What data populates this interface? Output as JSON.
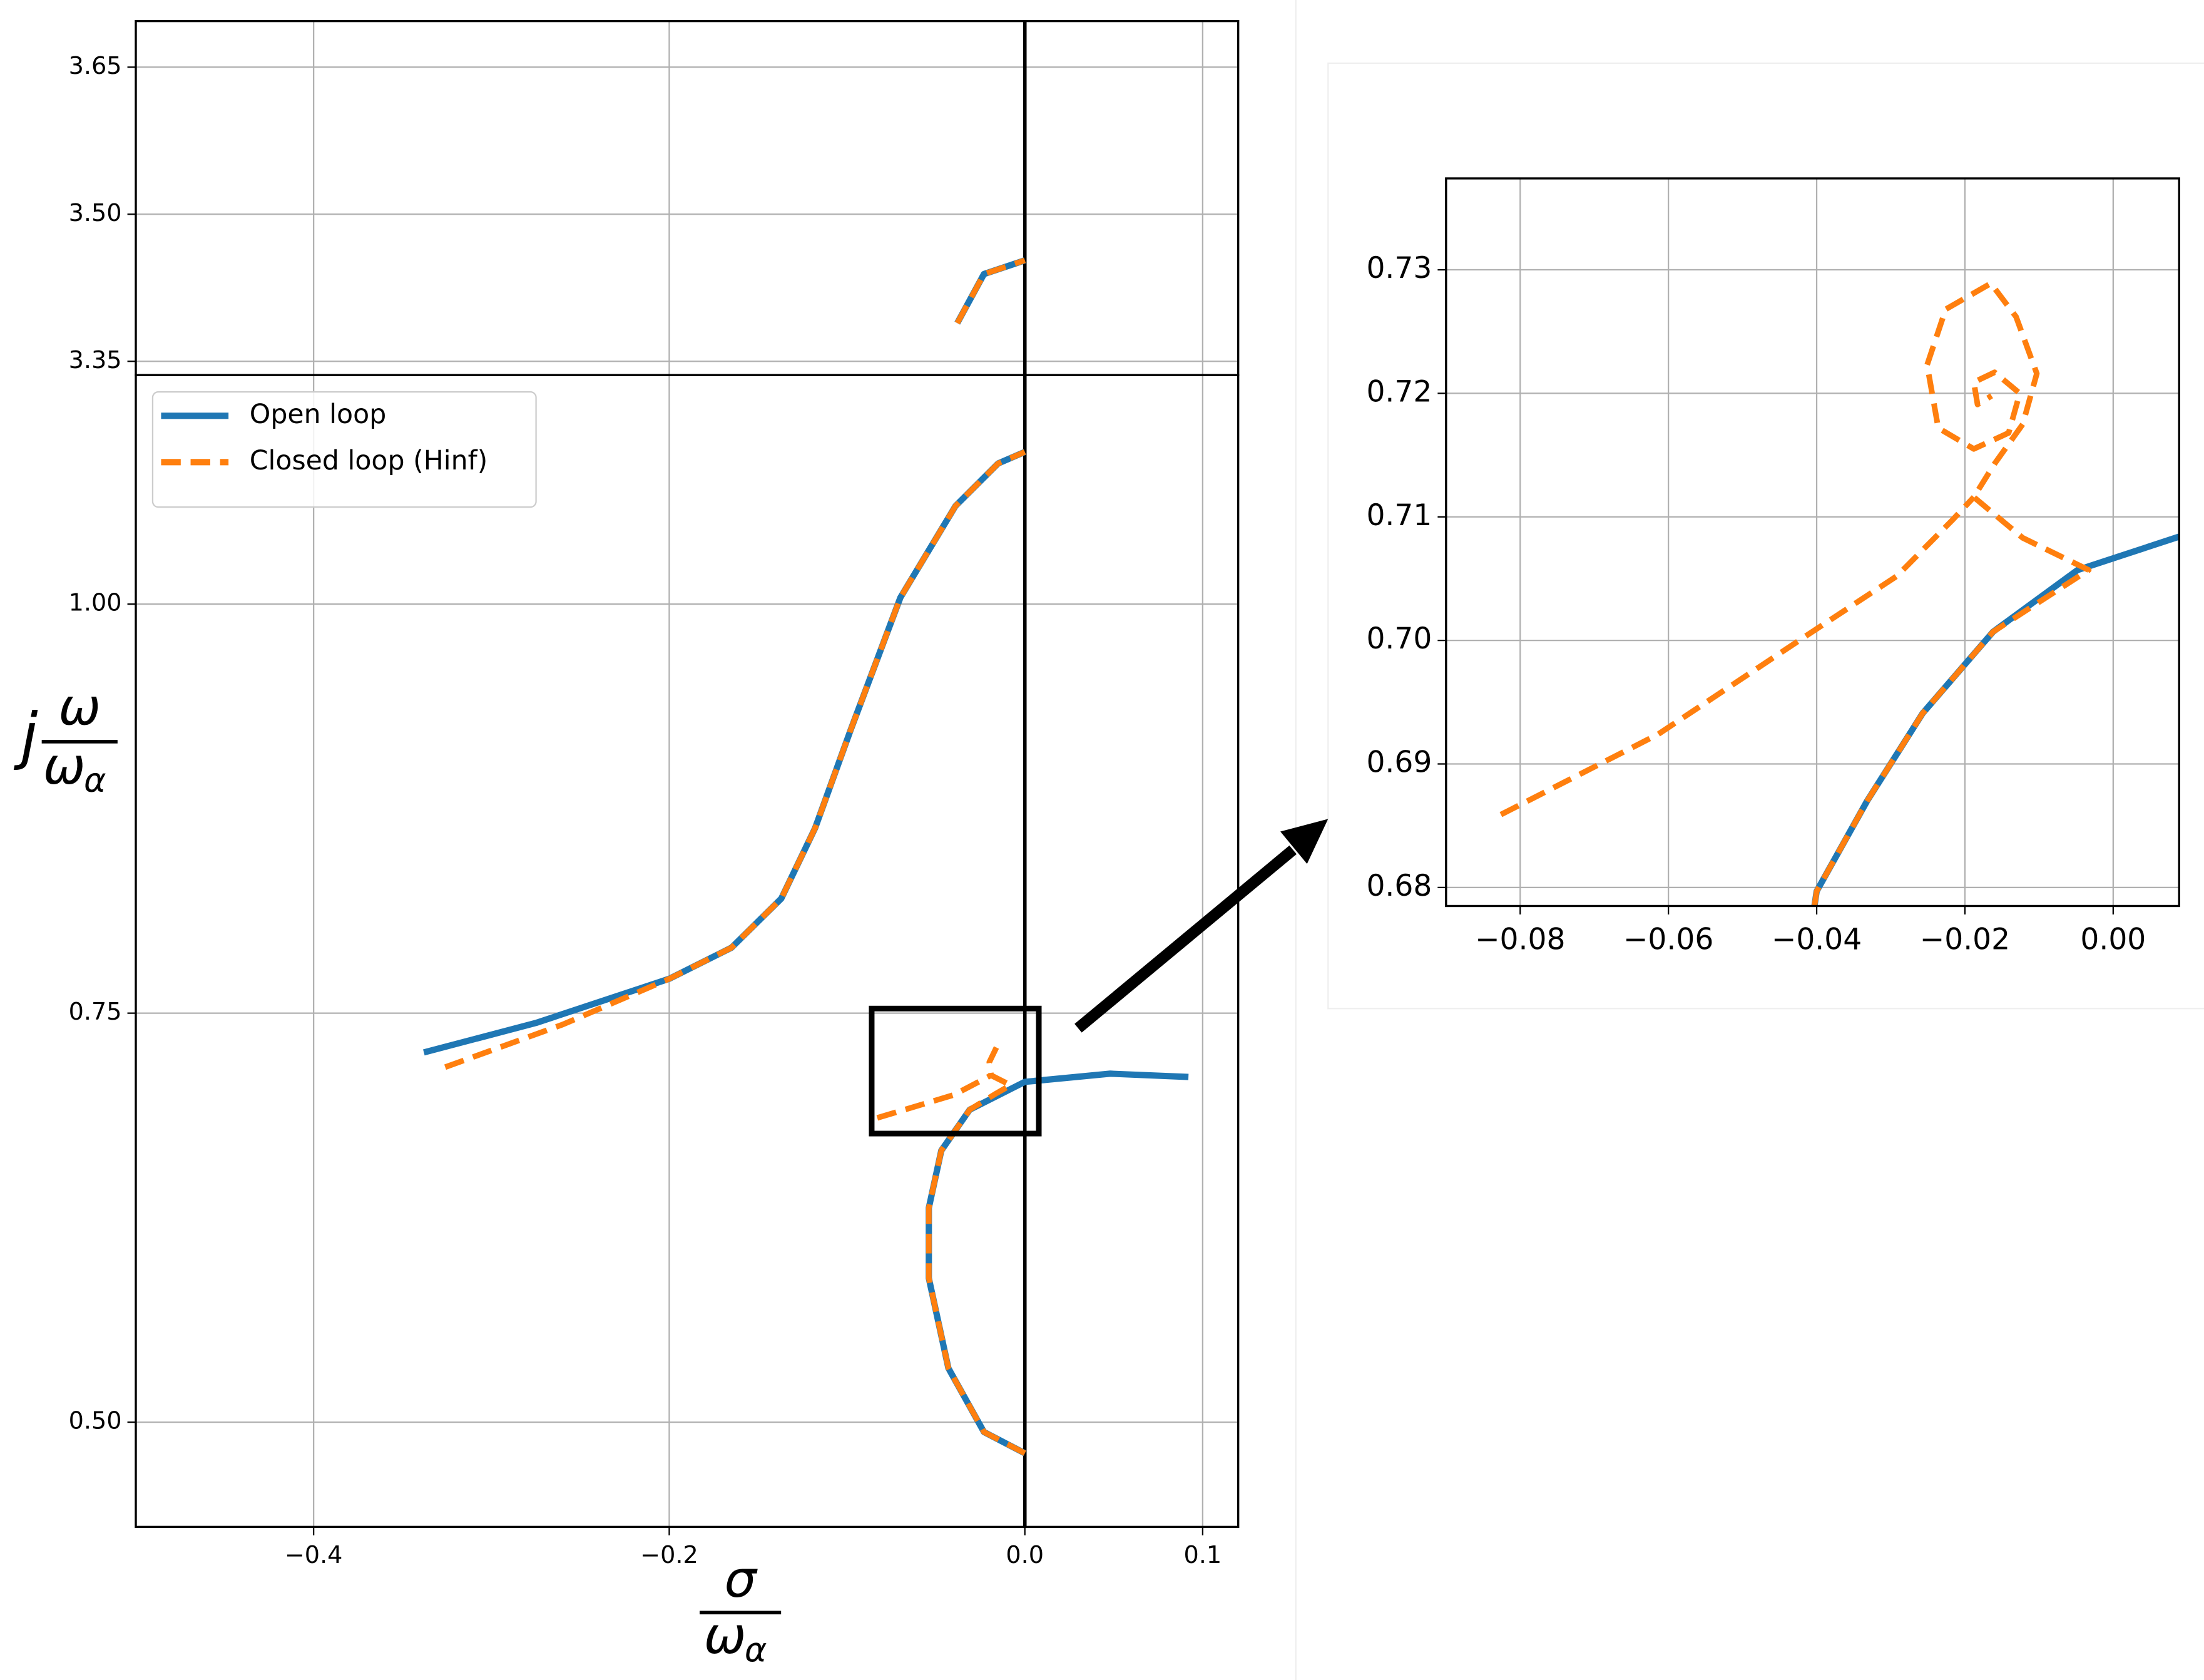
{
  "chart_data": [
    {
      "type": "line",
      "ylim": [
        3.336,
        3.697
      ],
      "yticks": [
        3.35,
        {
          "value": 3.5,
          "label": "3.50"
        },
        3.65
      ],
      "grid": true,
      "series": [
        {
          "color": "#1f77b4",
          "linestyle": "solid",
          "x": [
            -0.038,
            -0.023,
            0
          ],
          "values": [
            3.389,
            3.439,
            3.453
          ]
        },
        {
          "color": "#ff7f0e",
          "linestyle": "dashed",
          "x": [
            -0.038,
            -0.023,
            0
          ],
          "values": [
            3.389,
            3.439,
            3.453
          ]
        }
      ]
    },
    {
      "type": "line",
      "xlim": [
        -0.5,
        0.12
      ],
      "xticks": [
        {
          "value": -0.4,
          "label": "−0.4"
        },
        {
          "value": -0.2,
          "label": "−0.2"
        },
        {
          "value": 0,
          "label": "0.0"
        },
        0.1
      ],
      "ylim": [
        0.436,
        1.14
      ],
      "yticks": [
        {
          "value": 0.5,
          "label": "0.50"
        },
        0.75,
        {
          "value": 1,
          "label": "1.00"
        }
      ],
      "grid": true,
      "legend": "upper left",
      "x_label": {
        "numerator": "σ",
        "denominator": "ω",
        "subscript": "α"
      },
      "y_label": {
        "prefix": "j",
        "numerator": "ω",
        "denominator": "ω",
        "subscript": "α"
      },
      "series": [
        {
          "name": "Open loop",
          "color": "#1f77b4",
          "linestyle": "solid",
          "x": [
            -0.338,
            -0.275,
            -0.2,
            -0.165,
            -0.137,
            -0.118,
            -0.098,
            -0.07,
            -0.039,
            -0.015,
            0,
            null,
            0,
            -0.023,
            -0.043,
            -0.054,
            -0.054,
            -0.047,
            -0.031,
            0,
            0.048,
            0.092
          ],
          "values": [
            0.726,
            0.744,
            0.771,
            0.79,
            0.82,
            0.863,
            0.923,
            1.004,
            1.06,
            1.086,
            1.093,
            null,
            0.481,
            0.494,
            0.533,
            0.588,
            0.631,
            0.666,
            0.691,
            0.708,
            0.713,
            0.711
          ]
        },
        {
          "name": "Closed loop (Hinf)",
          "color": "#ff7f0e",
          "linestyle": "dashed",
          "x": [
            -0.326,
            -0.26,
            -0.2,
            -0.165,
            -0.137,
            -0.118,
            -0.098,
            -0.07,
            -0.039,
            -0.015,
            0,
            null,
            0,
            -0.023,
            -0.043,
            -0.054,
            -0.054,
            -0.047,
            -0.031,
            -0.016,
            -0.008,
            -0.019,
            -0.02,
            -0.016,
            null,
            -0.083,
            -0.04,
            -0.019
          ],
          "values": [
            0.717,
            0.743,
            0.771,
            0.79,
            0.82,
            0.863,
            0.923,
            1.004,
            1.06,
            1.086,
            1.093,
            null,
            0.481,
            0.494,
            0.533,
            0.588,
            0.631,
            0.666,
            0.691,
            0.701,
            0.706,
            0.712,
            0.72,
            0.729,
            null,
            0.686,
            0.7,
            0.712
          ]
        }
      ]
    },
    {
      "type": "line",
      "xlim": [
        -0.09,
        0.0089
      ],
      "xticks": [
        {
          "value": -0.08,
          "label": "−0.08"
        },
        {
          "value": -0.06,
          "label": "−0.06"
        },
        {
          "value": -0.04,
          "label": "−0.04"
        },
        {
          "value": -0.02,
          "label": "−0.02"
        },
        {
          "value": 0,
          "label": "0.00"
        }
      ],
      "ylim": [
        0.6785,
        0.7374
      ],
      "yticks": [
        0.68,
        0.69,
        {
          "value": 0.7,
          "label": "0.70"
        },
        0.71,
        0.72,
        0.73
      ],
      "grid": true,
      "series": [
        {
          "color": "#1f77b4",
          "linestyle": "solid",
          "x": [
            -0.0403,
            -0.04,
            -0.0332,
            -0.0257,
            -0.0162,
            -0.0048,
            0.0089
          ],
          "values": [
            0.6785,
            0.6797,
            0.687,
            0.6941,
            0.7007,
            0.7057,
            0.7084
          ]
        },
        {
          "color": "#ff7f0e",
          "linestyle": "dashed",
          "x": [
            -0.0403,
            -0.04,
            -0.0332,
            -0.0257,
            -0.0162,
            -0.0033,
            -0.0122,
            -0.0188,
            -0.016,
            -0.0122,
            -0.0103,
            -0.0131,
            -0.0165,
            -0.0226,
            -0.0251,
            -0.0236,
            -0.0188,
            -0.0141,
            -0.0126,
            -0.016,
            -0.0188,
            -0.0183,
            -0.0164,
            null,
            -0.0826,
            -0.0614,
            -0.0406,
            -0.0292,
            -0.0216,
            -0.0188
          ],
          "values": [
            0.6785,
            0.6797,
            0.687,
            0.6941,
            0.7007,
            0.7057,
            0.7083,
            0.7116,
            0.7143,
            0.7175,
            0.7216,
            0.7262,
            0.7289,
            0.7268,
            0.7223,
            0.7172,
            0.7155,
            0.7168,
            0.72,
            0.7217,
            0.7209,
            0.7191,
            0.7198,
            null,
            0.6859,
            0.6924,
            0.7007,
            0.7052,
            0.7098,
            0.7116
          ]
        }
      ]
    }
  ]
}
